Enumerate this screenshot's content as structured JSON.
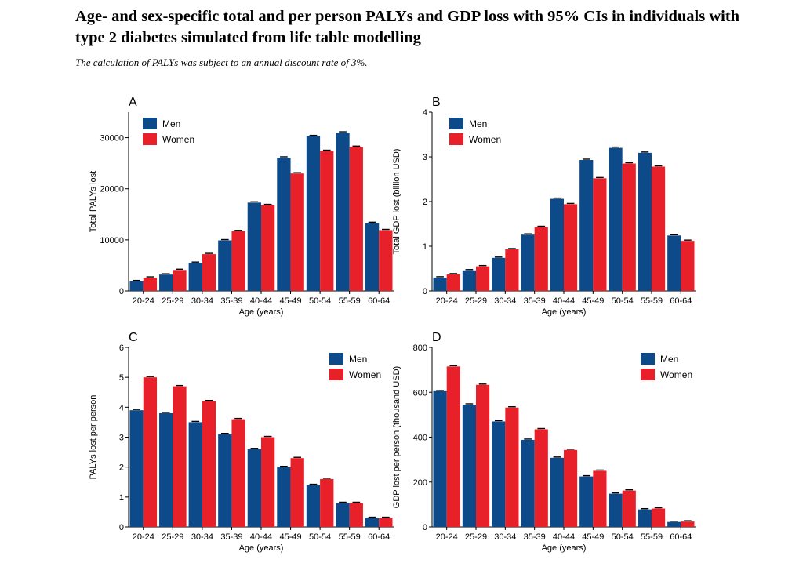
{
  "header": {
    "title": "Age- and sex-specific total and per person PALYs and GDP loss with 95% CIs in individuals with type 2 diabetes simulated from life table modelling",
    "subtitle": "The calculation of PALYs was subject to an annual discount rate of 3%."
  },
  "colors": {
    "men": "#0d4a8a",
    "women": "#e8202a",
    "axis": "#000000"
  },
  "chart_data": [
    {
      "type": "bar",
      "panel": "A",
      "categories": [
        "20-24",
        "25-29",
        "30-34",
        "35-39",
        "40-44",
        "45-49",
        "50-54",
        "55-59",
        "60-64"
      ],
      "series": [
        {
          "name": "Men",
          "values": [
            1900,
            3200,
            5500,
            9900,
            17300,
            26100,
            30300,
            31000,
            13300
          ]
        },
        {
          "name": "Women",
          "values": [
            2600,
            4100,
            7200,
            11700,
            16800,
            23000,
            27400,
            28200,
            11900
          ]
        }
      ],
      "xlabel": "Age (years)",
      "ylabel": "Total PALYs lost",
      "ylim": [
        0,
        35000
      ],
      "yticks": [
        0,
        10000,
        20000,
        30000
      ],
      "legend": "top-left"
    },
    {
      "type": "bar",
      "panel": "B",
      "categories": [
        "20-24",
        "25-29",
        "30-34",
        "35-39",
        "40-44",
        "45-49",
        "50-54",
        "55-59",
        "60-64"
      ],
      "series": [
        {
          "name": "Men",
          "values": [
            0.3,
            0.46,
            0.74,
            1.26,
            2.06,
            2.93,
            3.2,
            3.09,
            1.24
          ]
        },
        {
          "name": "Women",
          "values": [
            0.37,
            0.55,
            0.93,
            1.43,
            1.94,
            2.52,
            2.85,
            2.78,
            1.12
          ]
        }
      ],
      "xlabel": "Age (years)",
      "ylabel": "Total GDP lost (billion USD)",
      "ylim": [
        0,
        4
      ],
      "yticks": [
        0,
        1,
        2,
        3,
        4
      ],
      "legend": "top-left"
    },
    {
      "type": "bar",
      "panel": "C",
      "categories": [
        "20-24",
        "25-29",
        "30-34",
        "35-39",
        "40-44",
        "45-49",
        "50-54",
        "55-59",
        "60-64"
      ],
      "series": [
        {
          "name": "Men",
          "values": [
            3.9,
            3.8,
            3.5,
            3.1,
            2.6,
            2.0,
            1.4,
            0.8,
            0.3
          ]
        },
        {
          "name": "Women",
          "values": [
            5.0,
            4.7,
            4.2,
            3.6,
            3.0,
            2.3,
            1.6,
            0.8,
            0.3
          ]
        }
      ],
      "xlabel": "Age (years)",
      "ylabel": "PALYs lost per person",
      "ylim": [
        0,
        6
      ],
      "yticks": [
        0,
        1,
        2,
        3,
        4,
        5,
        6
      ],
      "legend": "top-right"
    },
    {
      "type": "bar",
      "panel": "D",
      "categories": [
        "20-24",
        "25-29",
        "30-34",
        "35-39",
        "40-44",
        "45-49",
        "50-54",
        "55-59",
        "60-64"
      ],
      "series": [
        {
          "name": "Men",
          "values": [
            605,
            545,
            470,
            388,
            308,
            225,
            148,
            78,
            22
          ]
        },
        {
          "name": "Women",
          "values": [
            715,
            633,
            532,
            435,
            343,
            250,
            162,
            82,
            24
          ]
        }
      ],
      "xlabel": "Age (years)",
      "ylabel": "GDP lost per person (thousand USD)",
      "ylim": [
        0,
        800
      ],
      "yticks": [
        0,
        200,
        400,
        600,
        800
      ],
      "legend": "top-right"
    }
  ]
}
